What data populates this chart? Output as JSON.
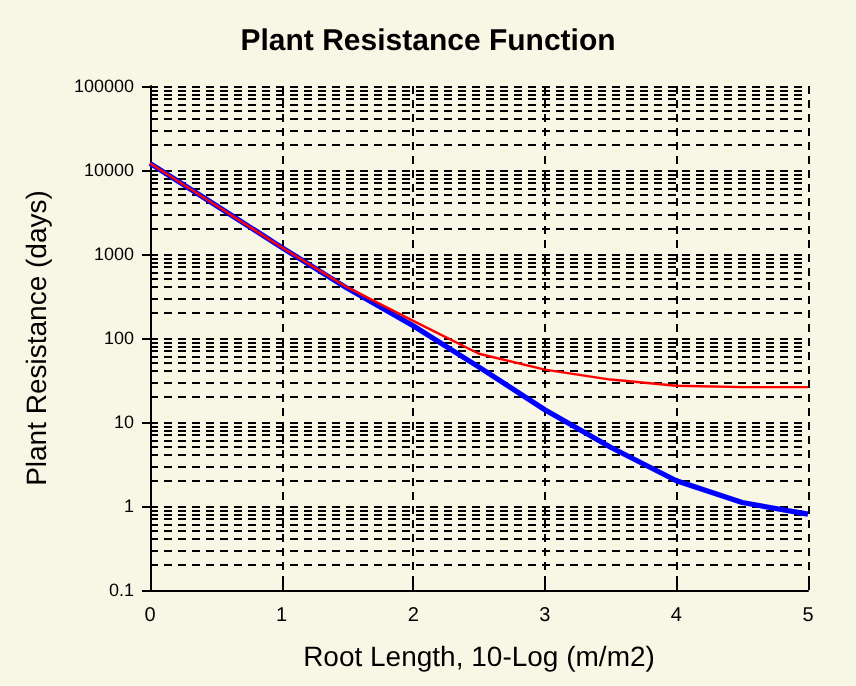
{
  "chart_data": {
    "type": "line",
    "title": "Plant Resistance Function",
    "xlabel": "Root Length, 10-Log (m/m2)",
    "ylabel": "Plant Resistance (days)",
    "x": [
      0,
      0.5,
      1,
      1.5,
      2,
      2.5,
      3,
      3.5,
      4,
      4.5,
      5
    ],
    "series": [
      {
        "color": "#0000ff",
        "values": [
          12000,
          3800,
          1200,
          390,
          140,
          45,
          14,
          5,
          2,
          1.1,
          0.8
        ]
      },
      {
        "color": "#ff0000",
        "values": [
          12000,
          3800,
          1200,
          400,
          160,
          65,
          42,
          32,
          27,
          26,
          26
        ]
      }
    ],
    "xlim": [
      0,
      5
    ],
    "xticks": [
      0,
      1,
      2,
      3,
      4,
      5
    ],
    "ylim": [
      0.1,
      100000
    ],
    "yticks": [
      0.1,
      1,
      10,
      100,
      1000,
      10000,
      100000
    ],
    "log": "y",
    "grid": true,
    "marker": "none",
    "line_style": "solid"
  }
}
